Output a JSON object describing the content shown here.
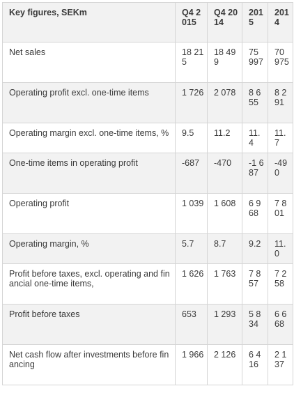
{
  "table": {
    "header": [
      "Key figures, SEKm",
      "Q4 2015",
      "Q4 2014",
      "2015",
      "2014"
    ],
    "rows": [
      {
        "label": "Net sales",
        "values": [
          "18 215",
          "18 499",
          "75 997",
          "70 975"
        ]
      },
      {
        "label": "Operating profit excl. one-time items",
        "values": [
          "1 726",
          "2 078",
          "8 655",
          "8 291"
        ]
      },
      {
        "label": "Operating margin excl. one-time items, %",
        "values": [
          "9.5",
          "11.2",
          "11.4",
          "11.7"
        ]
      },
      {
        "label": "One-time items in operating profit",
        "values": [
          "-687",
          "-470",
          "-1 687",
          "-490"
        ]
      },
      {
        "label": "Operating profit",
        "values": [
          "1 039",
          "1 608",
          "6 968",
          "7 801"
        ]
      },
      {
        "label": "Operating margin, %",
        "values": [
          "5.7",
          "8.7",
          "9.2",
          "11.0"
        ]
      },
      {
        "label": "Profit before taxes, excl. operating and financial one-time items,",
        "values": [
          "1 626",
          "1 763",
          "7 857",
          "7 258"
        ]
      },
      {
        "label": "Profit before taxes",
        "values": [
          "653",
          "1 293",
          "5 834",
          "6 668"
        ]
      },
      {
        "label": "Net cash flow after investments before financing",
        "values": [
          "1 966",
          "2 126",
          "6 416",
          "2 137"
        ]
      }
    ]
  }
}
